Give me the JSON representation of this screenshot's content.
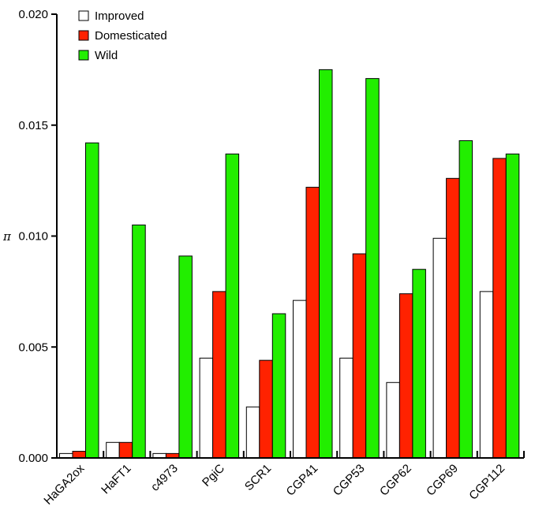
{
  "chart_data": {
    "type": "bar",
    "title": "",
    "xlabel": "",
    "ylabel": "π",
    "ylim": [
      0,
      0.02
    ],
    "yticks": [
      "0.000",
      "0.005",
      "0.010",
      "0.015",
      "0.020"
    ],
    "ytick_values": [
      0,
      0.005,
      0.01,
      0.015,
      0.02
    ],
    "categories": [
      "HaGA2ox",
      "HaFT1",
      "c4973",
      "PgiC",
      "SCR1",
      "CGP41",
      "CGP53",
      "CGP62",
      "CGP69",
      "CGP112"
    ],
    "series": [
      {
        "name": "Improved",
        "color": "#ffffff",
        "values": [
          0.0002,
          0.0007,
          0.0002,
          0.0045,
          0.0023,
          0.0071,
          0.0045,
          0.0034,
          0.0099,
          0.0075
        ]
      },
      {
        "name": "Domesticated",
        "color": "#ff2200",
        "values": [
          0.0003,
          0.0007,
          0.0002,
          0.0075,
          0.0044,
          0.0122,
          0.0092,
          0.0074,
          0.0126,
          0.0135
        ]
      },
      {
        "name": "Wild",
        "color": "#22ee00",
        "values": [
          0.0142,
          0.0105,
          0.0091,
          0.0137,
          0.0065,
          0.0175,
          0.0171,
          0.0085,
          0.0143,
          0.0137
        ]
      }
    ],
    "legend_position": "top-left",
    "grid": false
  }
}
